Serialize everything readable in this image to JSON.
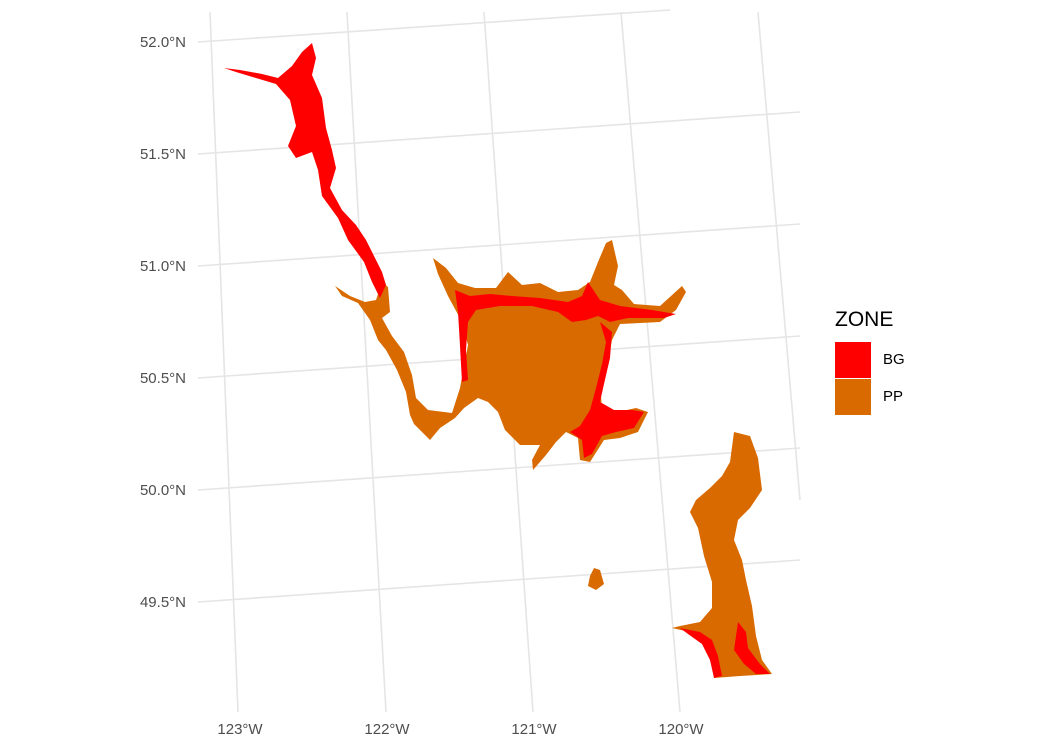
{
  "map": {
    "lon_ticks": [
      "123°W",
      "122°W",
      "121°W",
      "120°W"
    ],
    "lat_ticks": [
      "52.0°N",
      "51.5°N",
      "51.0°N",
      "50.5°N",
      "50.0°N",
      "49.5°N"
    ],
    "grid_color": "#e5e5e5"
  },
  "legend": {
    "title": "ZONE",
    "items": [
      {
        "label": "BG",
        "color": "#ff0000"
      },
      {
        "label": "PP",
        "color": "#d96a00"
      }
    ]
  }
}
